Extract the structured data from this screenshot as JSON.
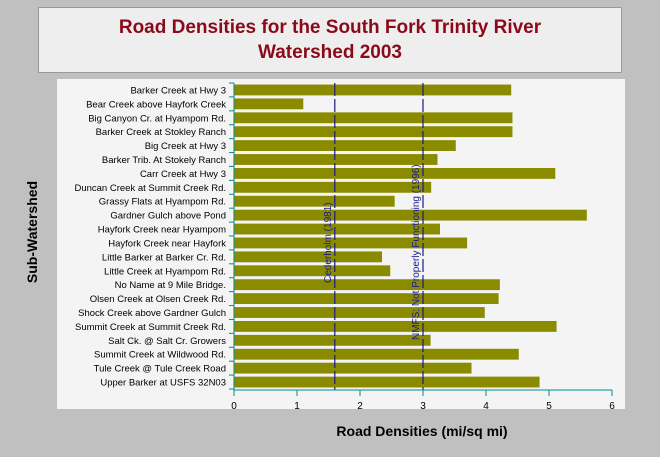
{
  "chart_data": {
    "type": "bar",
    "orientation": "horizontal",
    "title_lines": [
      "Road Densities for the South Fork Trinity River",
      "Watershed 2003"
    ],
    "xlabel": "Road Densities (mi/sq mi)",
    "ylabel": "Sub-Watershed",
    "xlim": [
      0,
      6
    ],
    "xticks": [
      "0",
      "1",
      "2",
      "3",
      "4",
      "5",
      "6"
    ],
    "categories": [
      "Barker Creek at Hwy 3",
      "Bear Creek above Hayfork Creek",
      "Big Canyon Cr. at Hyampom Rd.",
      "Barker Creek at Stokley Ranch",
      "Big Creek at Hwy 3",
      "Barker Trib. At Stokely Ranch",
      "Carr Creek at Hwy 3",
      "Duncan Creek at Summit Creek Rd.",
      "Grassy Flats at Hyampom Rd.",
      "Gardner Gulch above Pond",
      "Hayfork Creek near Hyampom",
      "Hayfork Creek near Hayfork",
      "Little Barker at Barker Cr. Rd.",
      "Little Creek at Hyampom Rd.",
      "No Name at 9 Mile Bridge.",
      "Olsen Creek at Olsen Creek Rd.",
      "Shock Creek above Gardner Gulch",
      "Summit Creek at Summit Creek Rd.",
      "Salt Ck. @ Salt Cr. Growers",
      "Summit Creek at Wildwood Rd.",
      "Tule Creek @ Tule Creek Road",
      "Upper Barker at USFS 32N03"
    ],
    "values": [
      4.4,
      1.1,
      4.42,
      4.42,
      3.52,
      3.23,
      5.1,
      3.13,
      2.55,
      5.6,
      3.27,
      3.7,
      2.35,
      2.48,
      4.22,
      4.2,
      3.98,
      5.12,
      3.12,
      4.52,
      3.77,
      4.85
    ],
    "reference_lines": [
      {
        "x": 1.6,
        "label": "Cederholm (1981)"
      },
      {
        "x": 3.0,
        "label": "NMFS: Not Properly Functioning (1996)"
      }
    ],
    "grid": false,
    "colors": {
      "bar": "#8b8b00",
      "plot_background": "#f4f4f4",
      "reference_line": "#1a1a8c",
      "axis": "#008b8b",
      "title": "#8b0a1a",
      "background": "#c0c0c0"
    }
  }
}
